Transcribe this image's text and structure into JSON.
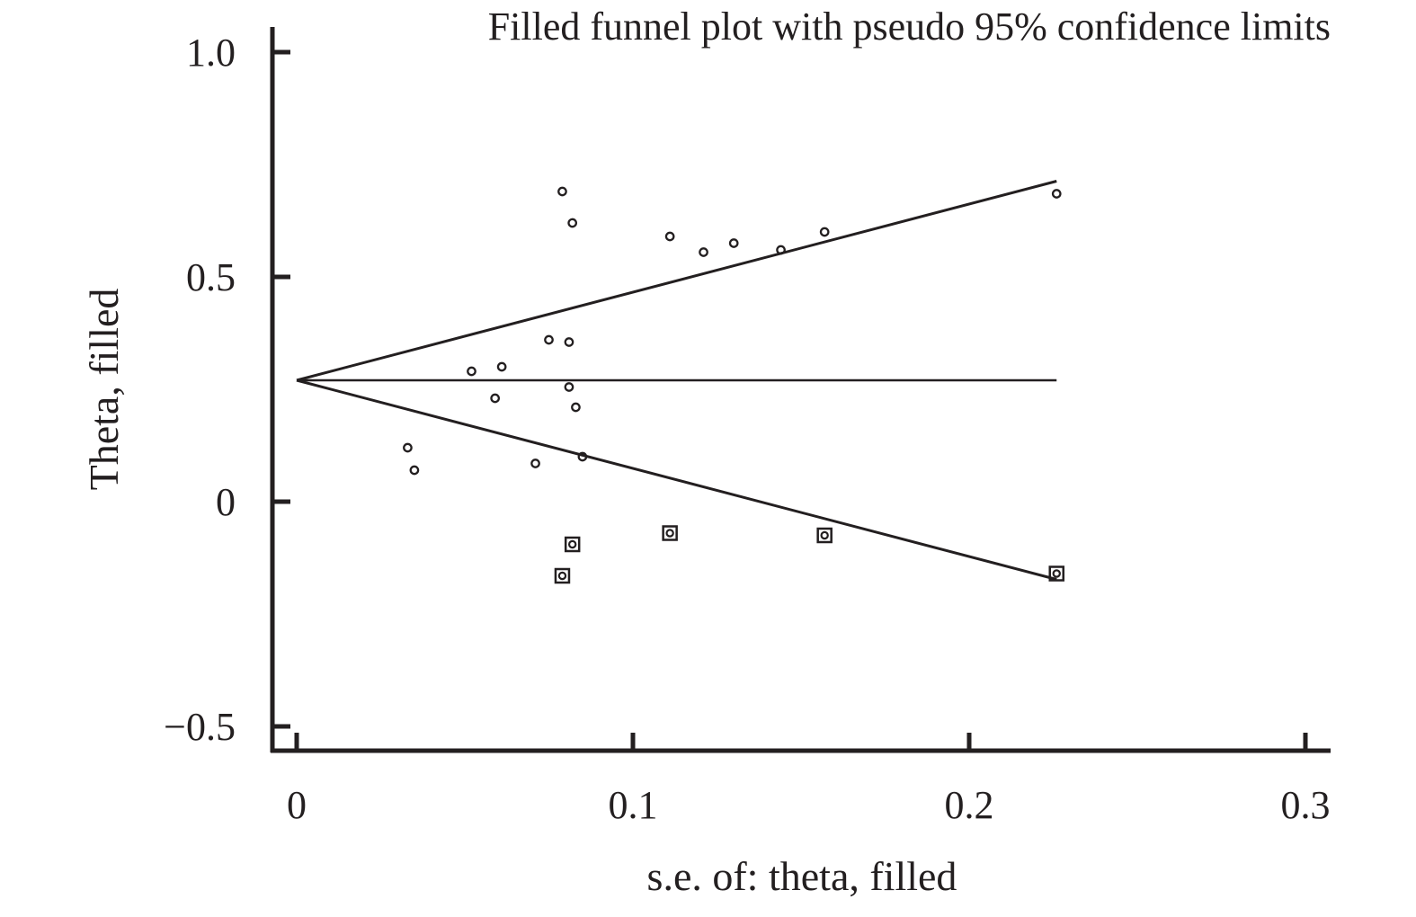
{
  "chart_data": {
    "type": "scatter",
    "title": "Filled funnel plot with pseudo 95% confidence limits",
    "xlabel": "s.e. of: theta, filled",
    "ylabel": "Theta, filled",
    "xlim": [
      0,
      0.3
    ],
    "ylim": [
      -0.5,
      1.0
    ],
    "x_ticks": [
      0,
      0.1,
      0.2,
      0.3
    ],
    "x_tick_labels": [
      "0",
      "0.1",
      "0.2",
      "0.3"
    ],
    "y_ticks": [
      -0.5,
      0,
      0.5,
      1.0
    ],
    "y_tick_labels": [
      "−0.5",
      "0",
      "0.5",
      "1.0"
    ],
    "grid": false,
    "legend": "none",
    "pooled_estimate": 0.27,
    "funnel": {
      "se_max": 0.226,
      "upper_at_max": 0.713,
      "lower_at_max": -0.173
    },
    "series": [
      {
        "marker": "circle",
        "points": [
          {
            "x": 0.033,
            "y": 0.12
          },
          {
            "x": 0.035,
            "y": 0.07
          },
          {
            "x": 0.052,
            "y": 0.29
          },
          {
            "x": 0.059,
            "y": 0.23
          },
          {
            "x": 0.061,
            "y": 0.3
          },
          {
            "x": 0.071,
            "y": 0.085
          },
          {
            "x": 0.075,
            "y": 0.36
          },
          {
            "x": 0.079,
            "y": 0.69
          },
          {
            "x": 0.081,
            "y": 0.355
          },
          {
            "x": 0.081,
            "y": 0.255
          },
          {
            "x": 0.082,
            "y": 0.62
          },
          {
            "x": 0.083,
            "y": 0.21
          },
          {
            "x": 0.085,
            "y": 0.1
          },
          {
            "x": 0.111,
            "y": 0.59
          },
          {
            "x": 0.121,
            "y": 0.555
          },
          {
            "x": 0.13,
            "y": 0.575
          },
          {
            "x": 0.144,
            "y": 0.56
          },
          {
            "x": 0.157,
            "y": 0.6
          },
          {
            "x": 0.226,
            "y": 0.685
          }
        ]
      },
      {
        "marker": "square-circle",
        "points": [
          {
            "x": 0.079,
            "y": -0.165
          },
          {
            "x": 0.082,
            "y": -0.095
          },
          {
            "x": 0.111,
            "y": -0.07
          },
          {
            "x": 0.157,
            "y": -0.075
          },
          {
            "x": 0.226,
            "y": -0.16
          }
        ]
      }
    ],
    "colors": {
      "ink": "#231f20",
      "background": "#ffffff"
    }
  }
}
